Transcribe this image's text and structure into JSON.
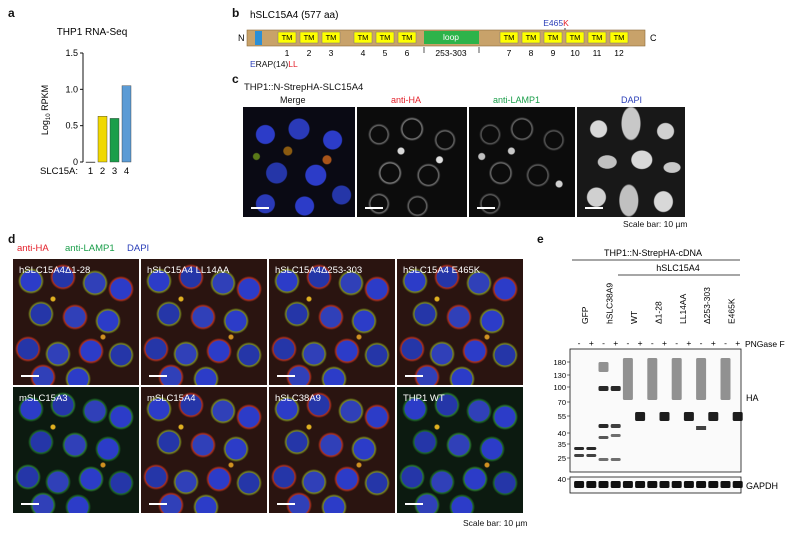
{
  "panels": {
    "a": "a",
    "b": "b",
    "c": "c",
    "d": "d",
    "e": "e"
  },
  "panel_a": {
    "title": "THP1 RNA-Seq",
    "ylabel": "Log10 RPKM",
    "xlabel": "SLC15A:",
    "chart_data": {
      "type": "bar",
      "title": "THP1 RNA-Seq",
      "xlabel": "SLC15A:",
      "ylabel": "Log10 RPKM",
      "categories": [
        "1",
        "2",
        "3",
        "4"
      ],
      "values": [
        0,
        0.63,
        0.6,
        1.05
      ],
      "colors": [
        "#222222",
        "#f0d800",
        "#1a9e4a",
        "#5b9bd5"
      ],
      "yticks": [
        "0",
        "0.5",
        "1.0",
        "1.5"
      ],
      "ylim": [
        0,
        1.5
      ]
    }
  },
  "panel_b": {
    "title": "hSLC15A4 (577 aa)",
    "n_term": "N",
    "c_term": "C",
    "tm_label": "TM",
    "tm_numbers": [
      "1",
      "2",
      "3",
      "4",
      "5",
      "6",
      "7",
      "8",
      "9",
      "10",
      "11",
      "12"
    ],
    "loop_label": "loop",
    "loop_range": "253-303",
    "mutation_wt": "E465",
    "mutation_mut": "K",
    "motif_e": "E",
    "motif_mid": "RAP(14)",
    "motif_ll": "LL",
    "colors": {
      "bar": "#c8a26a",
      "tm": "#ffff00",
      "loop": "#2db34a",
      "motif": "#2b8fd6"
    }
  },
  "panel_c": {
    "title": "THP1::N-StrepHA-SLC15A4",
    "columns": [
      {
        "label": "Merge",
        "color": "#111111"
      },
      {
        "label": "anti-HA",
        "color": "#e4202a"
      },
      {
        "label": "anti-LAMP1",
        "color": "#1a9e4a"
      },
      {
        "label": "DAPI",
        "color": "#2a3eb8"
      }
    ],
    "scale_bar": "Scale bar: 10 µm"
  },
  "panel_d": {
    "legend": [
      {
        "label": "anti-HA",
        "color": "#e4202a"
      },
      {
        "label": "anti-LAMP1",
        "color": "#1a9e4a"
      },
      {
        "label": "DAPI",
        "color": "#2a3eb8"
      }
    ],
    "images": [
      "hSLC15A4Δ1-28",
      "hSLC15A4 LL14AA",
      "hSLC15A4Δ253-303",
      "hSLC15A4 E465K",
      "mSLC15A3",
      "mSLC15A4",
      "hSLC38A9",
      "THP1 WT"
    ],
    "scale_bar": "Scale bar: 10 µm"
  },
  "panel_e": {
    "title": "THP1::N-StrepHA-cDNA",
    "group_label": "hSLC15A4",
    "lanes": [
      "GFP",
      "hSLC38A9",
      "WT",
      "Δ1-28",
      "LL14AA",
      "Δ253-303",
      "E465K"
    ],
    "pngase_signs": [
      "-",
      "+",
      "-",
      "+",
      "-",
      "+",
      "-",
      "+",
      "-",
      "+",
      "-",
      "+",
      "-",
      "+"
    ],
    "pngase_label": "PNGase F",
    "markers": [
      "180",
      "130",
      "100",
      "70",
      "55",
      "40",
      "35",
      "25"
    ],
    "loading_marker": "40",
    "blot_label": "HA",
    "loading_label": "GAPDH"
  }
}
